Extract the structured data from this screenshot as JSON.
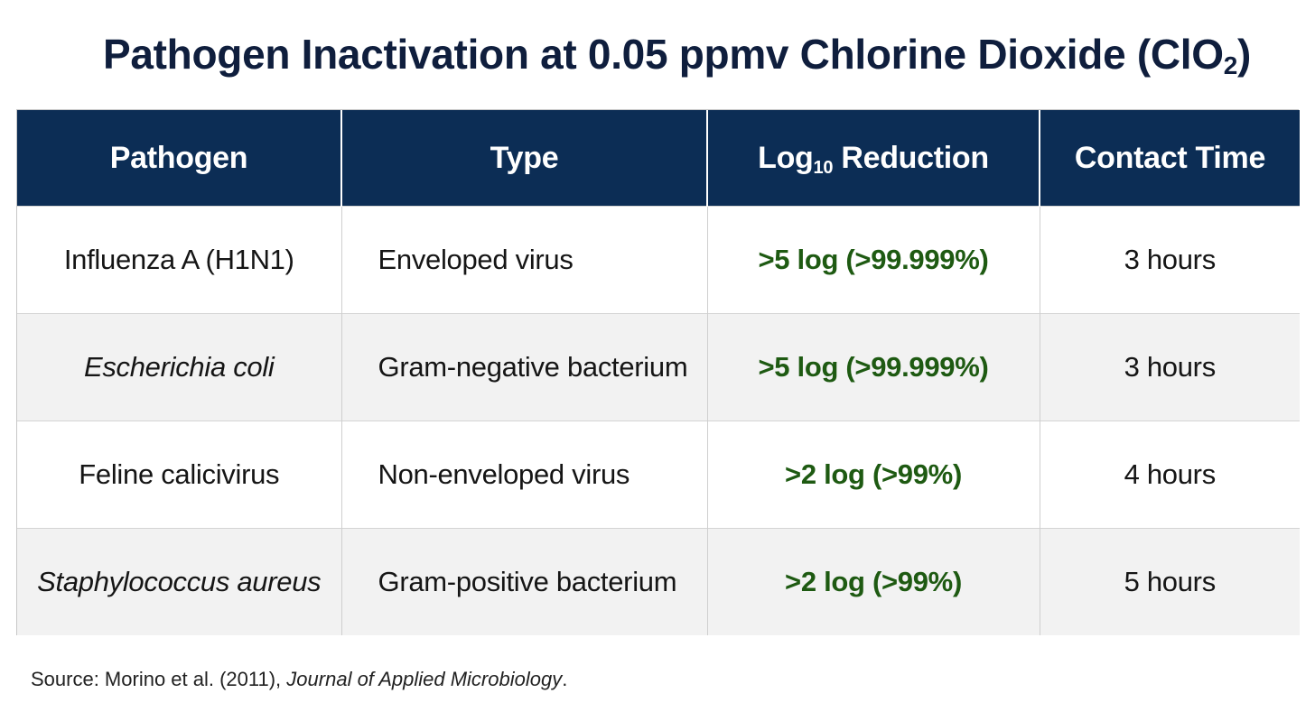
{
  "title": {
    "main": "Pathogen Inactivation at 0.05 ppmv Chlorine Dioxide (ClO",
    "subscript": "2",
    "close": ")"
  },
  "table": {
    "headers": {
      "pathogen": "Pathogen",
      "type": "Type",
      "reduction_prefix": "Log",
      "reduction_sub": "10",
      "reduction_suffix": " Reduction",
      "contact_time": "Contact Time"
    },
    "rows": [
      {
        "pathogen": "Influenza A (H1N1)",
        "italic": false,
        "type": "Enveloped virus",
        "reduction": ">5 log (>99.999%)",
        "contact_time": "3 hours"
      },
      {
        "pathogen": "Escherichia coli",
        "italic": true,
        "type": "Gram-negative bacterium",
        "reduction": ">5 log (>99.999%)",
        "contact_time": "3 hours"
      },
      {
        "pathogen": "Feline calicivirus",
        "italic": false,
        "type": "Non-enveloped virus",
        "reduction": ">2 log (>99%)",
        "contact_time": "4 hours"
      },
      {
        "pathogen": "Staphylococcus aureus",
        "italic": true,
        "type": "Gram-positive bacterium",
        "reduction": ">2 log (>99%)",
        "contact_time": "5 hours"
      }
    ]
  },
  "source": {
    "prefix": "Source: Morino et al. (2011), ",
    "journal": "Journal of Applied Microbiology",
    "suffix": "."
  },
  "colors": {
    "header_bg": "#0c2d55",
    "title_text": "#0f1e3d",
    "reduction_text": "#1e5a12",
    "alt_row_bg": "#f2f2f2"
  }
}
